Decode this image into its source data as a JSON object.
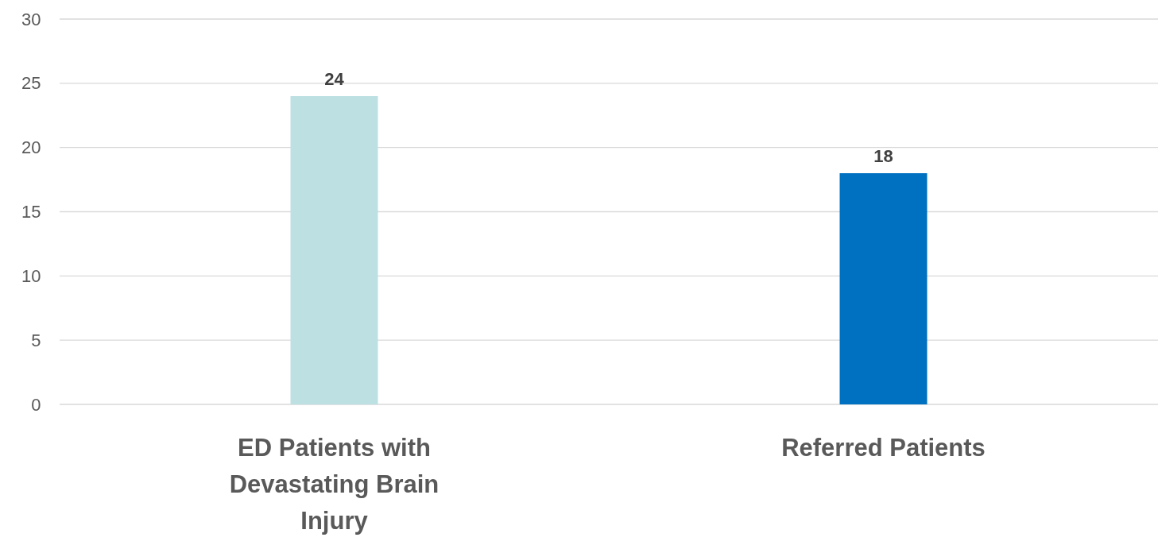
{
  "chart_data": {
    "type": "bar",
    "categories": [
      "ED Patients with Devastating Brain Injury",
      "Referred Patients"
    ],
    "values": [
      24,
      18
    ],
    "colors": [
      "#bde0e3",
      "#0070c0"
    ],
    "ylim": [
      0,
      30
    ],
    "yticks": [
      0,
      5,
      10,
      15,
      20,
      25,
      30
    ],
    "grid": "y",
    "data_labels": true
  }
}
